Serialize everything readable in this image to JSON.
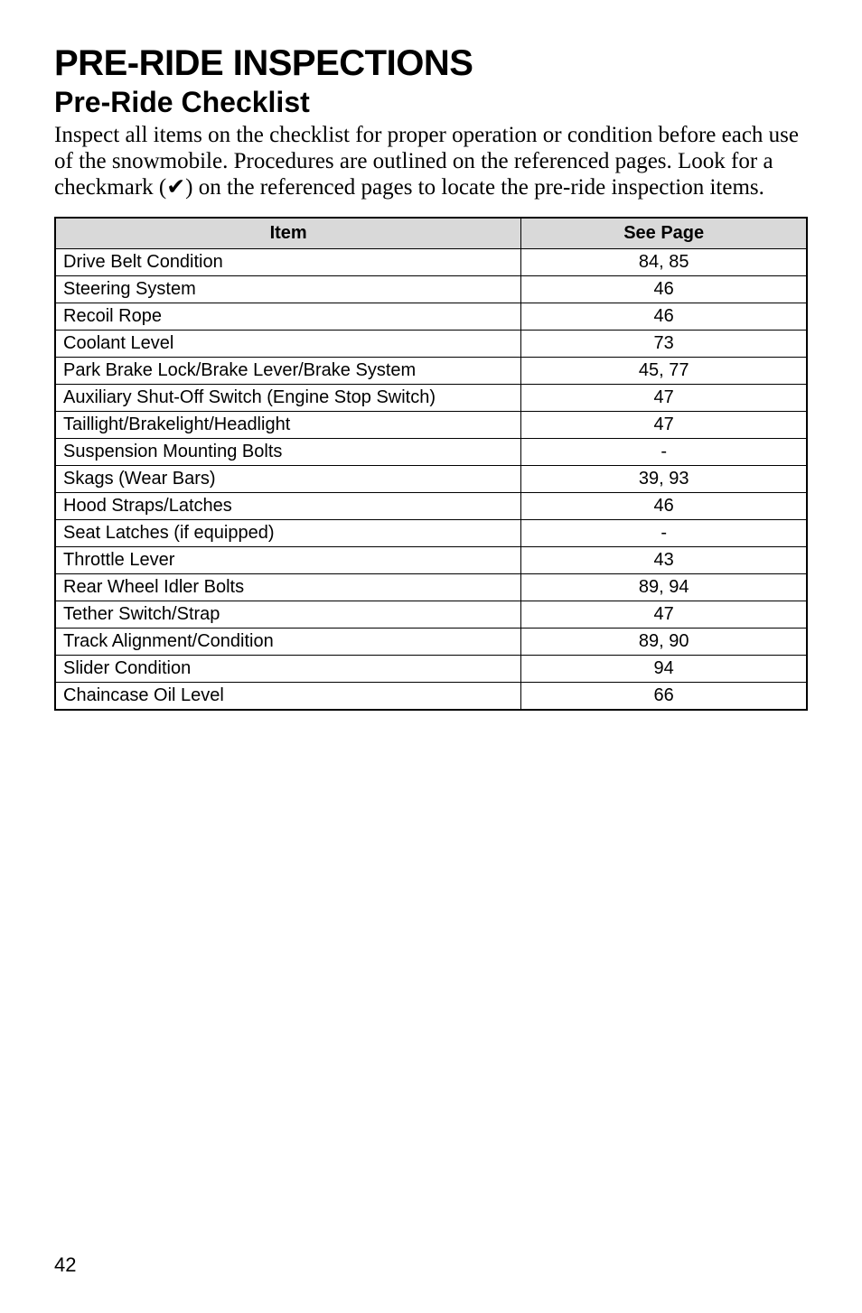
{
  "title": "PRE-RIDE INSPECTIONS",
  "subtitle": "Pre-Ride Checklist",
  "intro": "Inspect all items on the checklist for proper operation or condition before each use of the snowmobile.  Procedures are outlined on the referenced pages.  Look for a checkmark (✔) on the referenced pages to locate the pre-ride inspection items.",
  "table": {
    "headers": {
      "item": "Item",
      "page": "See Page"
    },
    "rows": [
      {
        "item": "Drive Belt Condition",
        "page": "84, 85"
      },
      {
        "item": "Steering System",
        "page": "46"
      },
      {
        "item": "Recoil Rope",
        "page": "46"
      },
      {
        "item": "Coolant Level",
        "page": "73"
      },
      {
        "item": "Park Brake Lock/Brake Lever/Brake System",
        "page": "45, 77"
      },
      {
        "item": "Auxiliary Shut-Off Switch (Engine Stop Switch)",
        "page": "47"
      },
      {
        "item": "Taillight/Brakelight/Headlight",
        "page": "47"
      },
      {
        "item": "Suspension Mounting Bolts",
        "page": "-"
      },
      {
        "item": "Skags (Wear Bars)",
        "page": "39, 93"
      },
      {
        "item": "Hood Straps/Latches",
        "page": "46"
      },
      {
        "item": "Seat Latches (if equipped)",
        "page": "-"
      },
      {
        "item": "Throttle Lever",
        "page": "43"
      },
      {
        "item": "Rear Wheel Idler Bolts",
        "page": "89, 94"
      },
      {
        "item": "Tether Switch/Strap",
        "page": "47"
      },
      {
        "item": "Track Alignment/Condition",
        "page": "89, 90"
      },
      {
        "item": "Slider Condition",
        "page": "94"
      },
      {
        "item": "Chaincase Oil Level",
        "page": "66"
      }
    ]
  },
  "page_number": "42",
  "colors": {
    "header_bg": "#d9d9d9",
    "border": "#000000",
    "text": "#000000",
    "background": "#ffffff"
  },
  "fonts": {
    "title_size": 40,
    "subtitle_size": 32,
    "body_size": 25,
    "table_size": 20,
    "page_num_size": 22
  }
}
